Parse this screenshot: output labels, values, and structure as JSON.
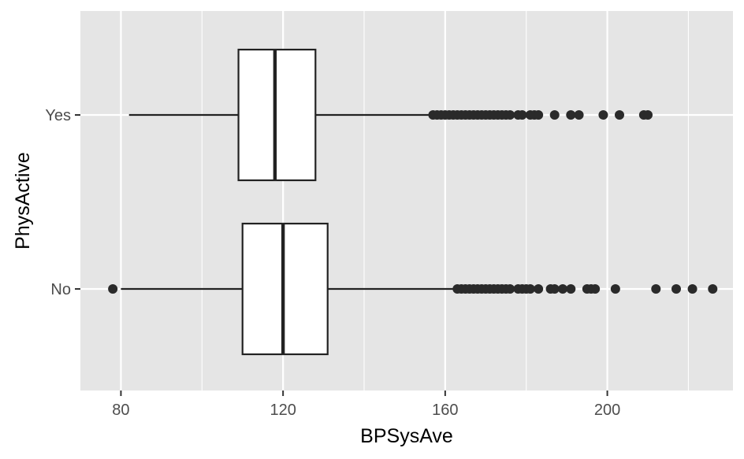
{
  "chart_data": {
    "type": "boxplot",
    "orientation": "horizontal",
    "xlabel": "BPSysAve",
    "ylabel": "PhysActive",
    "xlim": [
      70,
      231
    ],
    "x_ticks": [
      80,
      120,
      160,
      200
    ],
    "categories": [
      "No",
      "Yes"
    ],
    "grid": true,
    "legend": "none",
    "colors": {
      "panel": "#e5e5e5",
      "grid": "#ffffff",
      "box_fill": "#ffffff",
      "stroke": "#222222",
      "outlier": "#2a2a2a"
    },
    "boxes": [
      {
        "category": "No",
        "whisker_low": 80,
        "q1": 110,
        "median": 120,
        "q3": 131,
        "whisker_high": 162,
        "outliers": [
          78,
          163,
          164,
          165,
          166,
          167,
          168,
          169,
          170,
          171,
          172,
          173,
          174,
          175,
          176,
          178,
          179,
          180,
          181,
          183,
          186,
          187,
          189,
          191,
          195,
          196,
          197,
          202,
          212,
          217,
          221,
          226
        ]
      },
      {
        "category": "Yes",
        "whisker_low": 82,
        "q1": 109,
        "median": 118,
        "q3": 128,
        "whisker_high": 156,
        "outliers": [
          157,
          158,
          159,
          160,
          161,
          162,
          163,
          164,
          165,
          166,
          167,
          168,
          169,
          170,
          171,
          172,
          173,
          174,
          175,
          176,
          178,
          179,
          181,
          182,
          183,
          187,
          191,
          193,
          199,
          203,
          209,
          210
        ]
      }
    ]
  }
}
